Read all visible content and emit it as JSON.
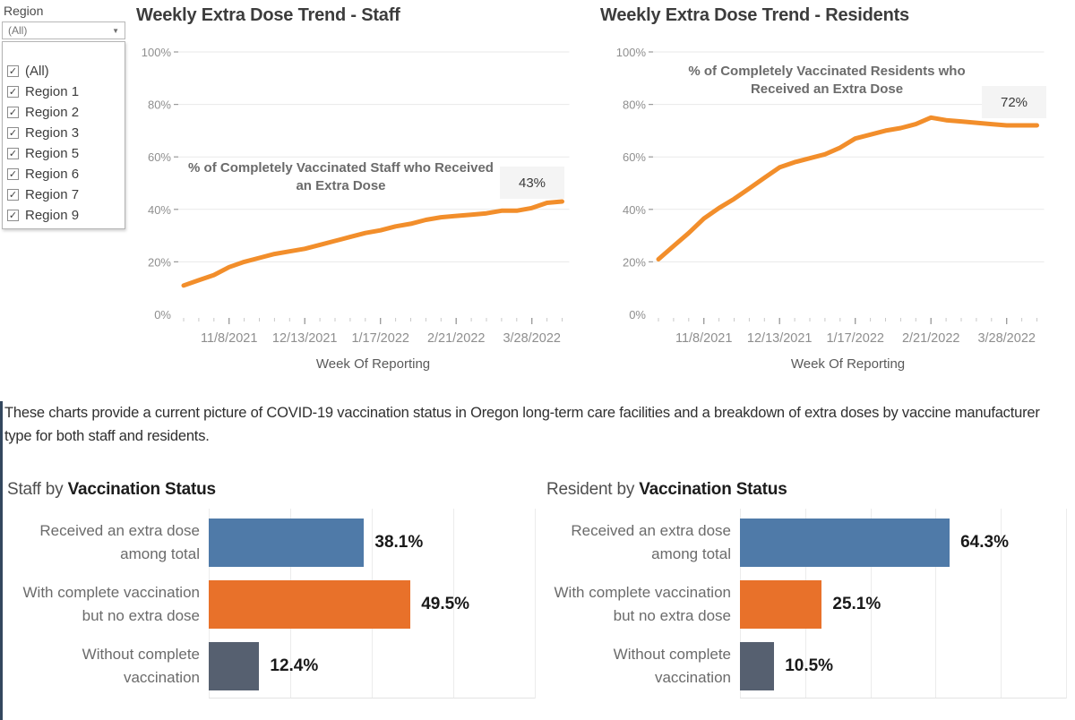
{
  "region_filter": {
    "label": "Region",
    "selected_value": "(All)",
    "dropdown_icon": "caret-down-icon",
    "checkbox_icon": "checkbox-checked-icon",
    "options": [
      {
        "label": "(All)",
        "checked": true
      },
      {
        "label": "Region 1",
        "checked": true
      },
      {
        "label": "Region 2",
        "checked": true
      },
      {
        "label": "Region 3",
        "checked": true
      },
      {
        "label": "Region 5",
        "checked": true
      },
      {
        "label": "Region 6",
        "checked": true
      },
      {
        "label": "Region 7",
        "checked": true
      },
      {
        "label": "Region 9",
        "checked": true
      }
    ]
  },
  "description": "These charts provide a current picture of COVID-19 vaccination status in Oregon long-term care facilities and a breakdown of extra doses by vaccine manufacturer type for both staff and residents.",
  "colors": {
    "trend_line": "#f28e2b",
    "bar_blue": "#4f7aa8",
    "bar_orange": "#e8712a",
    "bar_gray": "#566070",
    "accent_border": "#33475e",
    "badge_background": "#f4f4f4"
  },
  "chart_data": [
    {
      "id": "staff_trend",
      "type": "line",
      "title": "Weekly Extra Dose Trend - Staff",
      "annotation": "% of Completely Vaccinated Staff who Received an Extra Dose",
      "current_value_label": "43%",
      "xlabel": "Week Of Reporting",
      "ylim": [
        0,
        100
      ],
      "yticks": [
        "0%",
        "20%",
        "40%",
        "60%",
        "80%",
        "100%"
      ],
      "grid": true,
      "legend": "none",
      "line_color": "#f28e2b",
      "x": [
        "10/18/2021",
        "10/25/2021",
        "11/1/2021",
        "11/8/2021",
        "11/15/2021",
        "11/22/2021",
        "11/29/2021",
        "12/6/2021",
        "12/13/2021",
        "12/20/2021",
        "12/27/2021",
        "1/3/2022",
        "1/10/2022",
        "1/17/2022",
        "1/24/2022",
        "1/31/2022",
        "2/7/2022",
        "2/14/2022",
        "2/21/2022",
        "2/28/2022",
        "3/7/2022",
        "3/14/2022",
        "3/21/2022",
        "3/28/2022",
        "4/4/2022",
        "4/11/2022"
      ],
      "values": [
        11,
        13,
        15,
        18,
        20,
        21.5,
        23,
        24,
        25,
        26.5,
        28,
        29.5,
        31,
        32,
        33.5,
        34.5,
        36,
        37,
        37.5,
        38,
        38.5,
        39.5,
        39.5,
        40.5,
        42.5,
        43
      ],
      "x_major_ticks": [
        "11/8/2021",
        "12/13/2021",
        "1/17/2022",
        "2/21/2022",
        "3/28/2022"
      ]
    },
    {
      "id": "resident_trend",
      "type": "line",
      "title": "Weekly Extra Dose Trend - Residents",
      "annotation": "% of Completely Vaccinated Residents who Received an Extra Dose",
      "current_value_label": "72%",
      "xlabel": "Week Of Reporting",
      "ylim": [
        0,
        100
      ],
      "yticks": [
        "0%",
        "20%",
        "40%",
        "60%",
        "80%",
        "100%"
      ],
      "grid": true,
      "legend": "none",
      "line_color": "#f28e2b",
      "x": [
        "10/18/2021",
        "10/25/2021",
        "11/1/2021",
        "11/8/2021",
        "11/15/2021",
        "11/22/2021",
        "11/29/2021",
        "12/6/2021",
        "12/13/2021",
        "12/20/2021",
        "12/27/2021",
        "1/3/2022",
        "1/10/2022",
        "1/17/2022",
        "1/24/2022",
        "1/31/2022",
        "2/7/2022",
        "2/14/2022",
        "2/21/2022",
        "2/28/2022",
        "3/7/2022",
        "3/14/2022",
        "3/21/2022",
        "3/28/2022",
        "4/4/2022",
        "4/11/2022"
      ],
      "values": [
        21,
        26,
        31,
        36.5,
        40.5,
        44,
        48,
        52,
        56,
        58,
        59.5,
        61,
        63.5,
        67,
        68.5,
        70,
        71,
        72.5,
        75,
        74,
        73.5,
        73,
        72.5,
        72,
        72,
        72
      ],
      "x_major_ticks": [
        "11/8/2021",
        "12/13/2021",
        "1/17/2022",
        "2/21/2022",
        "3/28/2022"
      ]
    },
    {
      "id": "staff_status",
      "type": "bar",
      "orientation": "horizontal",
      "title_prefix": "Staff by ",
      "title_bold": "Vaccination Status",
      "xlim": [
        0,
        80
      ],
      "grid": true,
      "categories": [
        [
          "Received an extra dose",
          "among total"
        ],
        [
          "With complete vaccination",
          "but no extra dose"
        ],
        [
          "Without complete",
          "vaccination"
        ]
      ],
      "values": [
        38.1,
        49.5,
        12.4
      ],
      "labels": [
        "38.1%",
        "49.5%",
        "12.4%"
      ],
      "bar_colors": [
        "#4f7aa8",
        "#e8712a",
        "#566070"
      ]
    },
    {
      "id": "resident_status",
      "type": "bar",
      "orientation": "horizontal",
      "title_prefix": "Resident by ",
      "title_bold": "Vaccination Status",
      "xlim": [
        0,
        100
      ],
      "grid": true,
      "categories": [
        [
          "Received an extra dose",
          "among total"
        ],
        [
          "With complete vaccination",
          "but no extra dose"
        ],
        [
          "Without complete",
          "vaccination"
        ]
      ],
      "values": [
        64.3,
        25.1,
        10.5
      ],
      "labels": [
        "64.3%",
        "25.1%",
        "10.5%"
      ],
      "bar_colors": [
        "#4f7aa8",
        "#e8712a",
        "#566070"
      ]
    }
  ]
}
